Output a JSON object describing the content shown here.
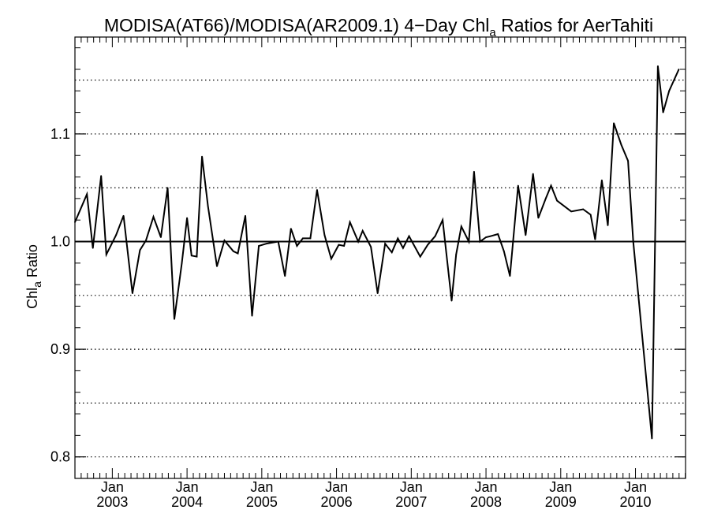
{
  "chart_data": {
    "type": "line",
    "title_main": "MODISA(AT66)/MODISA(AR2009.1) 4−Day Chl",
    "title_sub": "a",
    "title_end": " Ratios for AerTahiti",
    "ylabel_main": "Chl",
    "ylabel_sub": "a",
    "ylabel_end": " Ratio",
    "xlim": [
      2002.5,
      2010.67
    ],
    "ylim": [
      0.78,
      1.19
    ],
    "y_ticks": [
      0.8,
      0.9,
      1.0,
      1.1
    ],
    "y_tick_labels": [
      "0.8",
      "0.9",
      "1.0",
      "1.1"
    ],
    "y_minor_ticks": [
      0.8,
      0.82,
      0.84,
      0.86,
      0.88,
      0.9,
      0.92,
      0.94,
      0.96,
      0.98,
      1.0,
      1.02,
      1.04,
      1.06,
      1.08,
      1.1,
      1.12,
      1.14,
      1.16,
      1.18
    ],
    "x_ticks": [
      2003.0,
      2004.0,
      2005.0,
      2006.0,
      2007.0,
      2008.0,
      2009.0,
      2010.0
    ],
    "x_month_labels": [
      "Jan",
      "Jan",
      "Jan",
      "Jan",
      "Jan",
      "Jan",
      "Jan",
      "Jan"
    ],
    "x_year_labels": [
      "2003",
      "2004",
      "2005",
      "2006",
      "2007",
      "2008",
      "2009",
      "2010"
    ],
    "reference_line": 1.0,
    "dotted_gridlines": [
      0.8,
      0.85,
      0.9,
      0.95,
      1.05,
      1.1,
      1.15
    ],
    "grid": "dotted horizontal",
    "series": [
      {
        "x": [
          2002.5,
          2002.66,
          2002.74,
          2002.85,
          2002.92,
          2003.05,
          2003.15,
          2003.27,
          2003.37,
          2003.45,
          2003.55,
          2003.65,
          2003.74,
          2003.83,
          2003.93,
          2004.0,
          2004.06,
          2004.13,
          2004.2,
          2004.28,
          2004.4,
          2004.5,
          2004.62,
          2004.68,
          2004.78,
          2004.87,
          2004.96,
          2005.06,
          2005.22,
          2005.31,
          2005.39,
          2005.47,
          2005.55,
          2005.65,
          2005.74,
          2005.84,
          2005.93,
          2006.03,
          2006.1,
          2006.18,
          2006.29,
          2006.35,
          2006.46,
          2006.55,
          2006.65,
          2006.74,
          2006.82,
          2006.89,
          2006.97,
          2007.12,
          2007.22,
          2007.32,
          2007.42,
          2007.54,
          2007.6,
          2007.67,
          2007.77,
          2007.84,
          2007.92,
          2008.0,
          2008.06,
          2008.16,
          2008.24,
          2008.32,
          2008.43,
          2008.53,
          2008.63,
          2008.7,
          2008.8,
          2008.87,
          2008.95,
          2009.14,
          2009.3,
          2009.4,
          2009.46,
          2009.55,
          2009.63,
          2009.71,
          2009.81,
          2009.9,
          2009.97,
          2010.22,
          2010.3,
          2010.37,
          2010.45,
          2010.58
        ],
        "y": [
          1.018,
          1.044,
          0.994,
          1.061,
          0.988,
          1.006,
          1.024,
          0.952,
          0.992,
          1.001,
          1.023,
          1.004,
          1.05,
          0.928,
          0.98,
          1.022,
          0.987,
          0.986,
          1.079,
          1.033,
          0.977,
          1.001,
          0.991,
          0.989,
          1.024,
          0.931,
          0.996,
          0.998,
          1.0,
          0.968,
          1.012,
          0.996,
          1.003,
          1.003,
          1.048,
          1.006,
          0.984,
          0.997,
          0.996,
          1.018,
          1.0,
          1.01,
          0.995,
          0.952,
          0.998,
          0.99,
          1.003,
          0.994,
          1.005,
          0.986,
          0.997,
          1.005,
          1.02,
          0.945,
          0.988,
          1.014,
          1.0,
          1.065,
          1.0,
          1.004,
          1.005,
          1.007,
          0.991,
          0.968,
          1.052,
          1.006,
          1.063,
          1.022,
          1.04,
          1.052,
          1.038,
          1.028,
          1.03,
          1.025,
          1.002,
          1.057,
          1.015,
          1.11,
          1.09,
          1.075,
          1.0,
          0.817,
          1.163,
          1.12,
          1.14,
          1.16
        ]
      }
    ]
  }
}
